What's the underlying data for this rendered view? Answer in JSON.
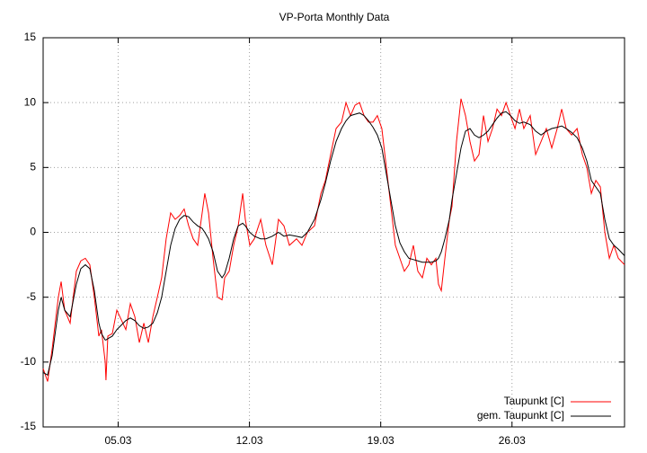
{
  "chart_data": {
    "type": "line",
    "title": "VP-Porta Monthly Data",
    "x": [
      1,
      1.24,
      1.48,
      1.81,
      1.96,
      2.15,
      2.44,
      2.77,
      3.01,
      3.25,
      3.49,
      3.73,
      3.97,
      4.11,
      4.31,
      4.35,
      4.45,
      4.69,
      4.93,
      5.41,
      5.65,
      5.89,
      6.13,
      6.37,
      6.61,
      6.85,
      7.09,
      7.32,
      7.56,
      7.8,
      8.04,
      8.28,
      8.52,
      8.76,
      9,
      9.24,
      9.48,
      9.62,
      9.82,
      10.06,
      10.3,
      10.54,
      10.68,
      10.92,
      11.16,
      11.4,
      11.64,
      11.78,
      12.02,
      12.26,
      12.6,
      12.88,
      13.22,
      13.55,
      13.84,
      14.13,
      14.51,
      14.8,
      15.09,
      15.47,
      15.81,
      16.05,
      16.33,
      16.62,
      16.91,
      17.15,
      17.39,
      17.63,
      17.87,
      18.11,
      18.35,
      18.59,
      18.82,
      19.06,
      19.3,
      19.54,
      19.78,
      20.02,
      20.26,
      20.5,
      20.74,
      20.98,
      21.22,
      21.46,
      21.7,
      21.94,
      22.08,
      22.23,
      22.42,
      22.66,
      22.8,
      23.04,
      23.28,
      23.52,
      23.76,
      24,
      24.24,
      24.48,
      24.72,
      24.96,
      25.2,
      25.44,
      25.68,
      25.92,
      26.16,
      26.4,
      26.63,
      26.97,
      27.26,
      27.55,
      27.83,
      28.12,
      28.41,
      28.65,
      28.89,
      29.18,
      29.47,
      29.75,
      29.99,
      30.23,
      30.47,
      30.71,
      30.95,
      31.19,
      31.43,
      31.67,
      32
    ],
    "series": [
      {
        "name": "Taupunkt [C]",
        "color": "#ff0000",
        "values": [
          -10.5,
          -11.5,
          -9,
          -5,
          -3.8,
          -6,
          -7,
          -3,
          -2.2,
          -2,
          -2.5,
          -5,
          -8,
          -7.5,
          -10,
          -11.4,
          -8,
          -7.8,
          -6,
          -7.5,
          -5.5,
          -6.5,
          -8.5,
          -7,
          -8.5,
          -6.5,
          -5,
          -3.5,
          -0.5,
          1.5,
          1,
          1.3,
          1.8,
          0.5,
          -0.5,
          -1,
          1.5,
          3,
          1.5,
          -2,
          -5,
          -5.2,
          -3.5,
          -3,
          -1,
          0.5,
          3,
          1,
          -1,
          -0.5,
          1,
          -1,
          -2.5,
          1,
          0.5,
          -1,
          -0.5,
          -1,
          0,
          0.5,
          3,
          4,
          6,
          8,
          8.5,
          10,
          9,
          9.8,
          10,
          9,
          8.5,
          8.5,
          9,
          8,
          5,
          2,
          -1,
          -2,
          -3,
          -2.5,
          -1,
          -3,
          -3.5,
          -2,
          -2.5,
          -2,
          -4,
          -4.5,
          -2,
          1,
          2,
          7,
          10.3,
          9,
          7,
          5.5,
          6,
          9,
          7,
          8,
          9.5,
          9,
          10,
          9,
          8,
          9.5,
          8,
          9,
          6,
          7,
          8,
          6.5,
          8,
          9.5,
          8,
          7.5,
          8,
          6,
          5,
          3,
          4,
          3.5,
          0,
          -2,
          -1,
          -2,
          -2.5
        ]
      },
      {
        "name": "gem. Taupunkt [C]",
        "color": "#000000",
        "values": [
          -10.8,
          -11,
          -9.5,
          -6,
          -5,
          -6,
          -6.5,
          -4,
          -2.8,
          -2.5,
          -2.8,
          -4.5,
          -7,
          -7.8,
          -8.3,
          -8.3,
          -8.2,
          -8,
          -7.5,
          -6.8,
          -6.6,
          -6.8,
          -7.2,
          -7.4,
          -7.3,
          -7,
          -6.2,
          -5,
          -3,
          -1,
          0.3,
          1,
          1.3,
          1.2,
          0.8,
          0.5,
          0.3,
          0,
          -0.5,
          -1.5,
          -3,
          -3.5,
          -3.2,
          -2,
          -0.5,
          0.5,
          0.7,
          0.5,
          0,
          -0.3,
          -0.5,
          -0.5,
          -0.3,
          0,
          -0.3,
          -0.2,
          -0.3,
          -0.4,
          0,
          1,
          2.5,
          3.8,
          5.5,
          7,
          8,
          8.6,
          9,
          9.1,
          9.2,
          9,
          8.6,
          8.1,
          7.5,
          6.5,
          4.5,
          2.5,
          0.5,
          -0.8,
          -1.5,
          -2,
          -2.1,
          -2.2,
          -2.3,
          -2.3,
          -2.3,
          -2.2,
          -2,
          -1.5,
          -0.5,
          1,
          2.5,
          4.5,
          6.5,
          7.8,
          8,
          7.5,
          7.3,
          7.5,
          7.8,
          8.3,
          8.8,
          9.2,
          9.3,
          9,
          8.6,
          8.4,
          8.5,
          8.3,
          7.8,
          7.5,
          7.8,
          8,
          8.1,
          8.2,
          8,
          7.7,
          7.3,
          6.5,
          5.5,
          4,
          3.5,
          3,
          1,
          -0.5,
          -1,
          -1.3,
          -1.8
        ]
      }
    ],
    "xlim": [
      1,
      32
    ],
    "xticks": [
      {
        "value": 5,
        "label": "05.03"
      },
      {
        "value": 12,
        "label": "12.03"
      },
      {
        "value": 19,
        "label": "19.03"
      },
      {
        "value": 26,
        "label": "26.03"
      }
    ],
    "ylim": [
      -15,
      15
    ],
    "yticks": [
      -15,
      -10,
      -5,
      0,
      5,
      10,
      15
    ],
    "grid": true,
    "legend": "bottom-right"
  }
}
